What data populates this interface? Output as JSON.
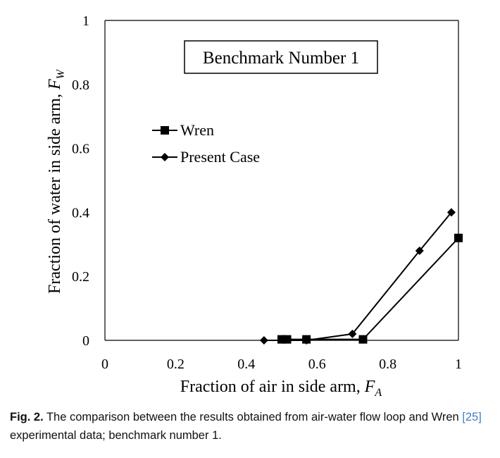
{
  "chart_data": {
    "type": "line",
    "annotation": "Benchmark Number 1",
    "xlabel": "Fraction of air in side arm, ",
    "xlabel_var": "F",
    "xlabel_sub": "A",
    "ylabel": "Fraction of water in side arm, ",
    "ylabel_var": "F",
    "ylabel_sub": "W",
    "xlim": [
      0,
      1
    ],
    "ylim": [
      0,
      1
    ],
    "xticks": [
      "0",
      "0.2",
      "0.4",
      "0.6",
      "0.8",
      "1"
    ],
    "xtick_values": [
      0,
      0.2,
      0.4,
      0.6,
      0.8,
      1
    ],
    "yticks": [
      "0",
      "0.2",
      "0.4",
      "0.6",
      "0.8",
      "1"
    ],
    "ytick_values": [
      0,
      0.2,
      0.4,
      0.6,
      0.8,
      1
    ],
    "grid": false,
    "legend_position": "upper-left",
    "series": [
      {
        "name": "Wren",
        "marker": "square",
        "color": "#000000",
        "x": [
          0.5,
          0.515,
          0.57,
          0.73,
          1.0
        ],
        "y": [
          0.003,
          0.003,
          0.003,
          0.003,
          0.32
        ]
      },
      {
        "name": "Present Case",
        "marker": "diamond",
        "color": "#000000",
        "x": [
          0.45,
          0.57,
          0.7,
          0.89,
          0.98
        ],
        "y": [
          0.0,
          0.0,
          0.02,
          0.28,
          0.4
        ]
      }
    ]
  },
  "caption": {
    "label": "Fig. 2.",
    "text_before_ref": " The comparison between the results obtained from air-water flow loop and Wren ",
    "ref": "[25]",
    "text_after_ref": " experimental data; benchmark number 1."
  }
}
